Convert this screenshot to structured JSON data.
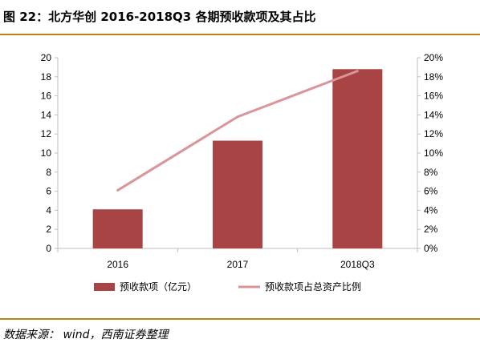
{
  "header": {
    "title": "图 22：北方华创 2016-2018Q3 各期预收款项及其占比"
  },
  "footer": {
    "source": "数据来源： wind，西南证券整理"
  },
  "colors": {
    "rule": "#b8860b",
    "bar": "#a84444",
    "line": "#d9959a",
    "axis": "#bfbfbf"
  },
  "chart_data": {
    "type": "bar",
    "categories": [
      "2016",
      "2017",
      "2018Q3"
    ],
    "series": [
      {
        "name": "预收款项（亿元）",
        "type": "bar",
        "axis": "left",
        "values": [
          4.1,
          11.3,
          18.8
        ]
      },
      {
        "name": "预收款项占总资产比例",
        "type": "line",
        "axis": "right",
        "values": [
          6.1,
          13.8,
          18.6
        ]
      }
    ],
    "ylim": [
      0,
      20
    ],
    "y_ticks": [
      "0",
      "2",
      "4",
      "6",
      "8",
      "10",
      "12",
      "14",
      "16",
      "18",
      "20"
    ],
    "y2lim": [
      0,
      20
    ],
    "y2_ticks": [
      "0%",
      "2%",
      "4%",
      "6%",
      "8%",
      "10%",
      "12%",
      "14%",
      "16%",
      "18%",
      "20%"
    ],
    "grid": false,
    "legend": "bottom"
  }
}
